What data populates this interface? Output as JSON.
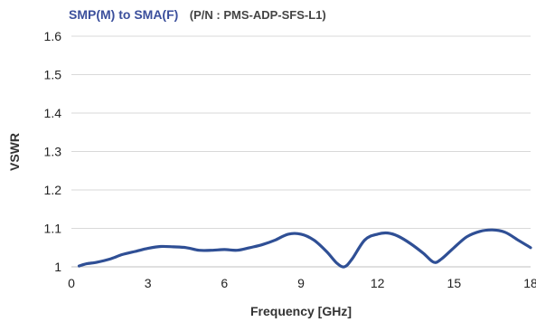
{
  "chart_data": {
    "type": "line",
    "title": "SMP(M) to SMA(F)",
    "subtitle": "(P/N : PMS-ADP-SFS-L1)",
    "xlabel": "Frequency [GHz]",
    "ylabel": "VSWR",
    "xlim": [
      0,
      18
    ],
    "ylim": [
      1,
      1.6
    ],
    "xticks": [
      "0",
      "3",
      "6",
      "9",
      "12",
      "15",
      "18"
    ],
    "yticks": [
      "1",
      "1.1",
      "1.2",
      "1.3",
      "1.4",
      "1.5",
      "1.6"
    ],
    "grid": "horizontal",
    "colors": {
      "title": "#3b4f9c",
      "subtitle": "#444444",
      "line": "#2f4f95",
      "grid": "#d9d9d9"
    },
    "series": [
      {
        "x": [
          0.3,
          0.6,
          1.0,
          1.5,
          2.0,
          2.5,
          3.0,
          3.5,
          4.0,
          4.5,
          5.0,
          5.5,
          6.0,
          6.5,
          7.0,
          7.5,
          8.0,
          8.5,
          9.0,
          9.5,
          10.0,
          10.4,
          10.7,
          11.0,
          11.5,
          12.0,
          12.4,
          12.8,
          13.3,
          13.8,
          14.2,
          14.5,
          15.0,
          15.5,
          16.0,
          16.5,
          17.0,
          17.5,
          18.0
        ],
        "values": [
          1.002,
          1.008,
          1.012,
          1.02,
          1.032,
          1.04,
          1.048,
          1.053,
          1.052,
          1.05,
          1.043,
          1.043,
          1.045,
          1.043,
          1.05,
          1.058,
          1.07,
          1.085,
          1.085,
          1.07,
          1.04,
          1.01,
          1.0,
          1.02,
          1.07,
          1.085,
          1.088,
          1.08,
          1.06,
          1.035,
          1.012,
          1.02,
          1.05,
          1.078,
          1.092,
          1.096,
          1.09,
          1.07,
          1.05
        ]
      }
    ]
  }
}
